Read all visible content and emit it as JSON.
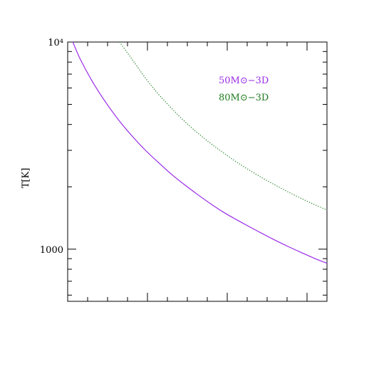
{
  "chart_data": {
    "type": "line",
    "title": "",
    "xlabel": "",
    "ylabel": "T[K]",
    "yscale": "log",
    "ylim": [
      560,
      10000
    ],
    "xlim": [
      0,
      1
    ],
    "y_tick_labels": [
      {
        "value": 10000,
        "label": "10⁴"
      },
      {
        "value": 1000,
        "label": "1000"
      }
    ],
    "legend": "top-right",
    "grid": false,
    "x": [
      0.02,
      0.05,
      0.1,
      0.15,
      0.2,
      0.25,
      0.3,
      0.35,
      0.4,
      0.45,
      0.5,
      0.55,
      0.6,
      0.65,
      0.7,
      0.75,
      0.8,
      0.85,
      0.9,
      0.95,
      1.0
    ],
    "series": [
      {
        "name": "50M⊙−3D",
        "color": "#9a2be8",
        "style": "solid",
        "values": [
          10000,
          8200,
          6300,
          5050,
          4150,
          3500,
          3000,
          2620,
          2300,
          2050,
          1840,
          1660,
          1510,
          1390,
          1285,
          1190,
          1105,
          1030,
          965,
          905,
          855
        ]
      },
      {
        "name": "80M⊙−3D",
        "color": "#1e7a1e",
        "style": "dotted",
        "values": [
          null,
          null,
          null,
          null,
          10000,
          8200,
          6700,
          5600,
          4800,
          4150,
          3650,
          3250,
          2920,
          2640,
          2410,
          2210,
          2040,
          1890,
          1760,
          1645,
          1545
        ]
      }
    ]
  }
}
